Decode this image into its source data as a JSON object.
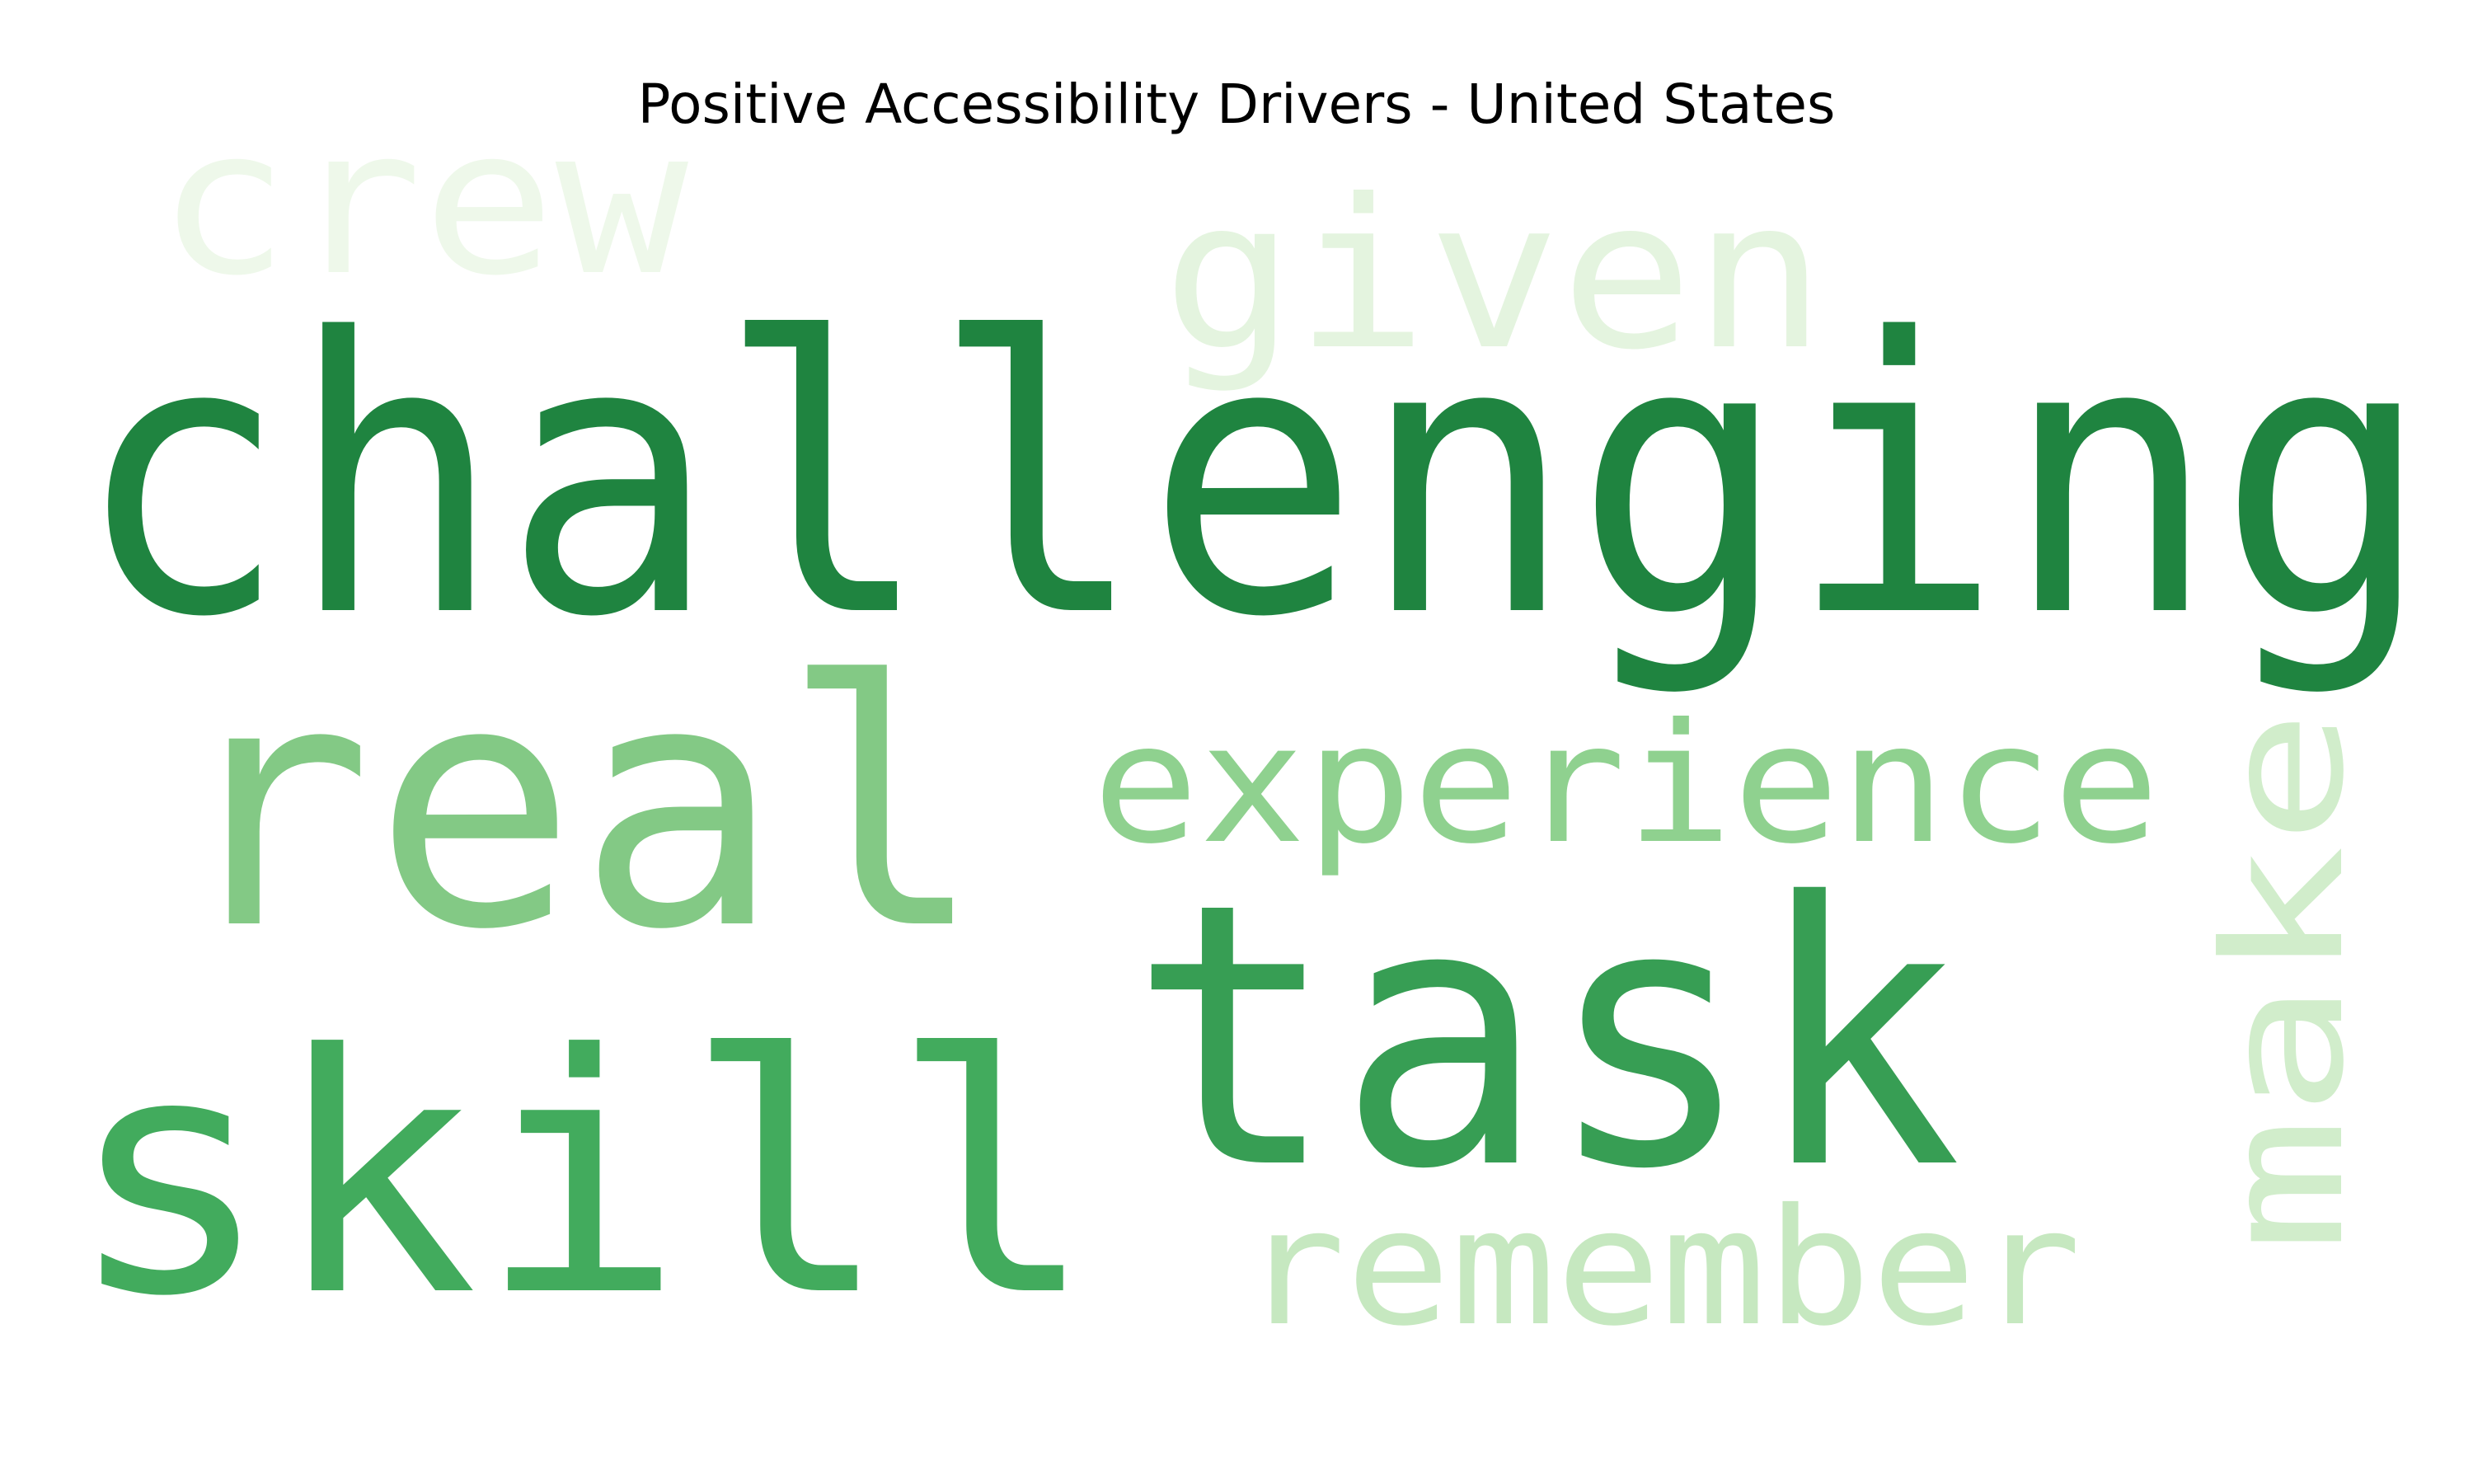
{
  "title": "Positive Accessibility Drivers - United States",
  "words": [
    {
      "text": "challenging",
      "color": "#1f8440",
      "weight": 1.0,
      "orientation": "horizontal"
    },
    {
      "text": "task",
      "color": "#379e54",
      "weight": 0.85,
      "orientation": "horizontal"
    },
    {
      "text": "skill",
      "color": "#42ab5d",
      "weight": 0.8,
      "orientation": "horizontal"
    },
    {
      "text": "real",
      "color": "#83c985",
      "weight": 0.75,
      "orientation": "horizontal"
    },
    {
      "text": "experience",
      "color": "#8fd18f",
      "weight": 0.45,
      "orientation": "horizontal"
    },
    {
      "text": "remember",
      "color": "#c6e8c0",
      "weight": 0.4,
      "orientation": "horizontal"
    },
    {
      "text": "make",
      "color": "#d1edcb",
      "weight": 0.45,
      "orientation": "vertical"
    },
    {
      "text": "given",
      "color": "#e4f4df",
      "weight": 0.45,
      "orientation": "horizontal"
    },
    {
      "text": "crew",
      "color": "#eef8ea",
      "weight": 0.45,
      "orientation": "horizontal"
    }
  ]
}
